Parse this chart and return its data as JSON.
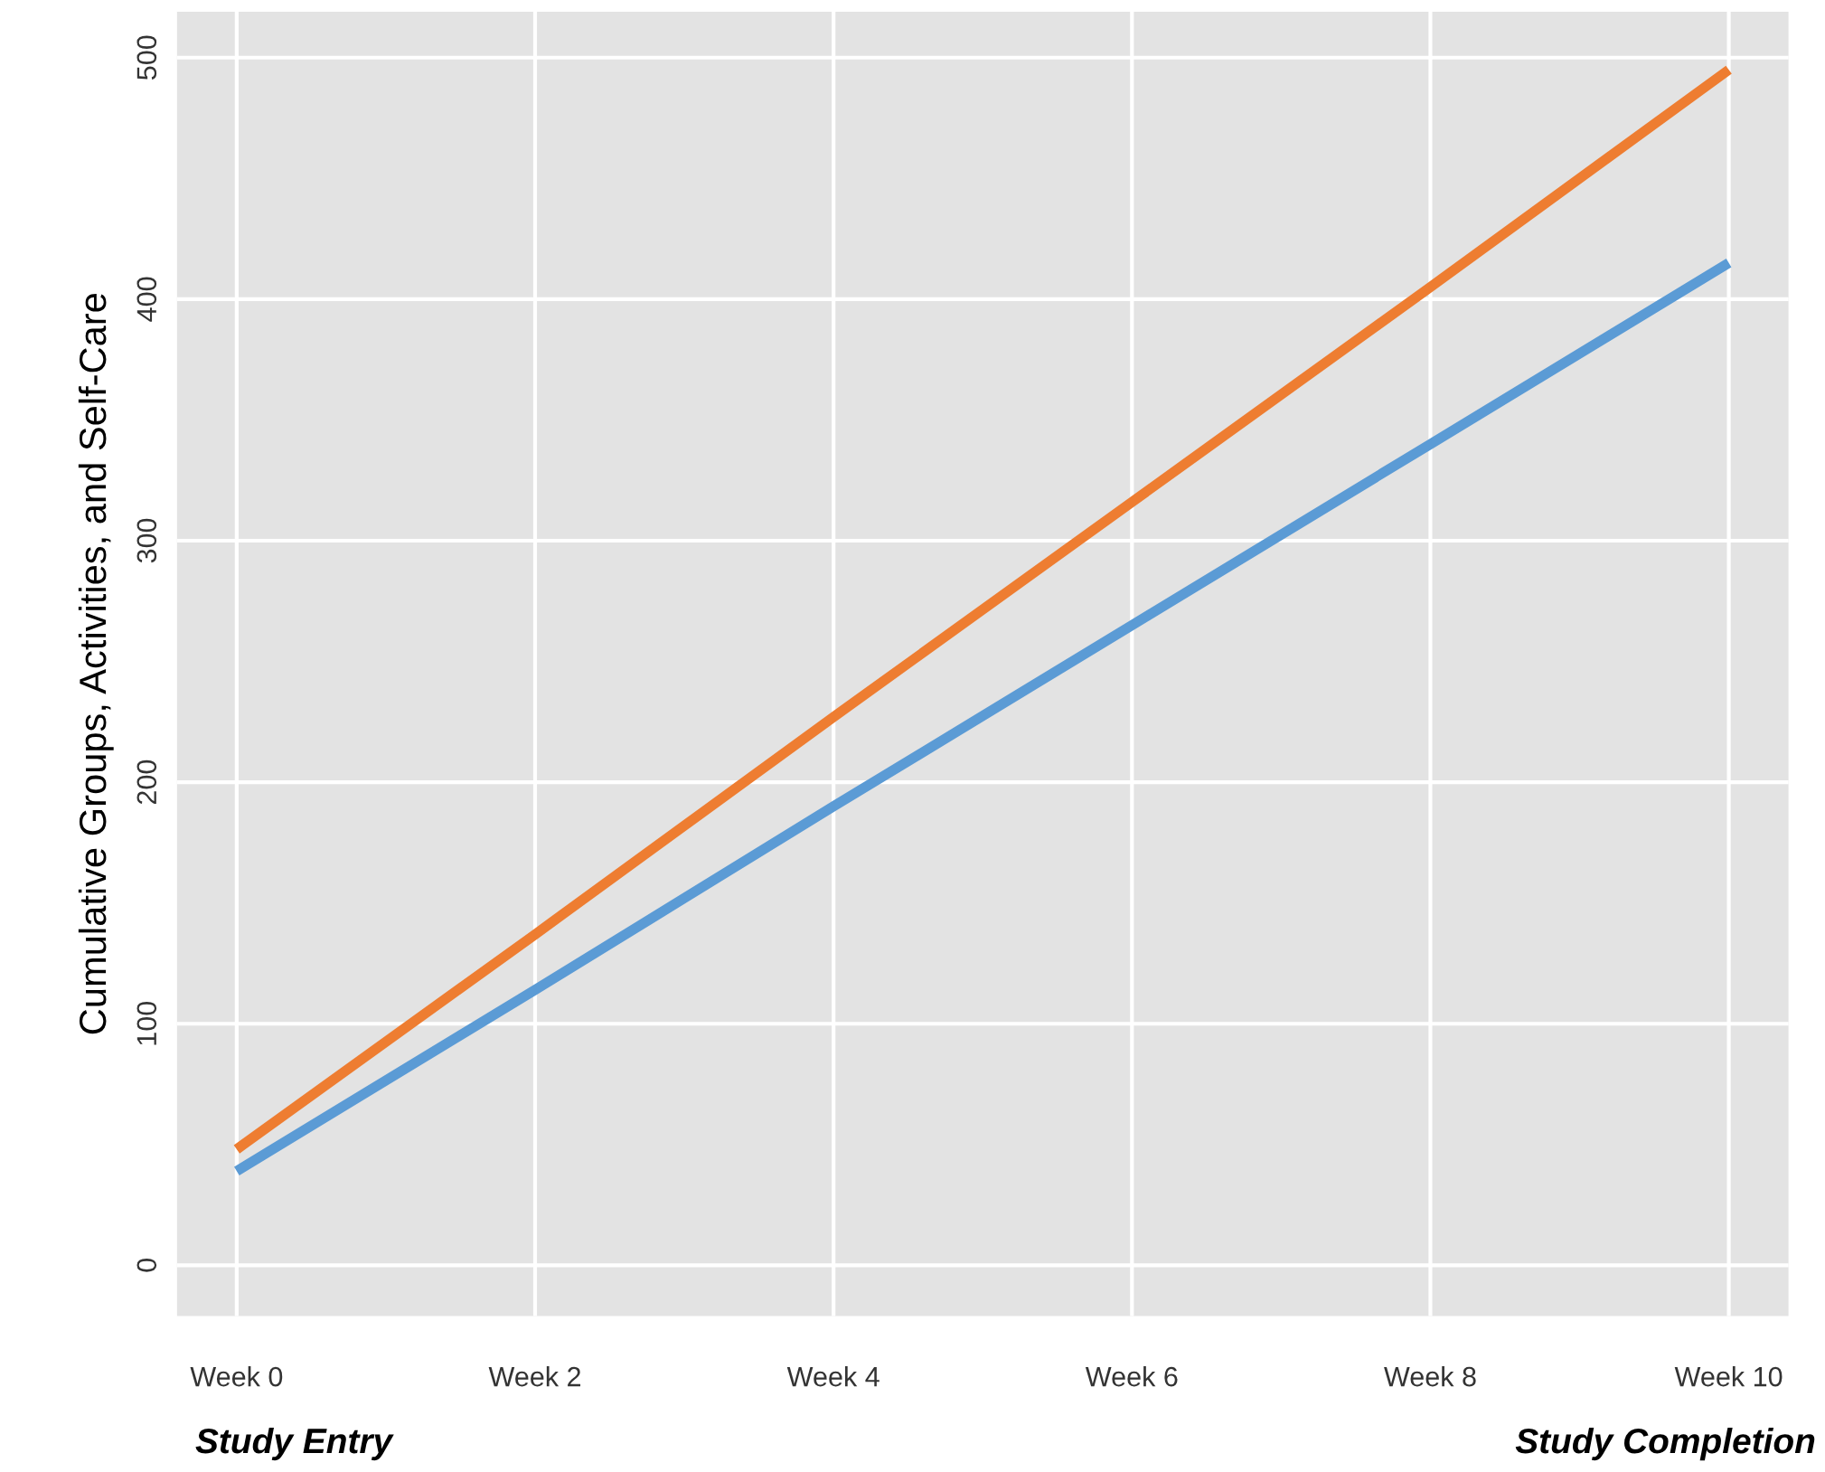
{
  "chart_data": {
    "type": "line",
    "ylabel": "Cumulative Groups, Activities, and Self-Care",
    "categories": [
      "Week 0",
      "Week 2",
      "Week 4",
      "Week 6",
      "Week 8",
      "Week 10"
    ],
    "series": [
      {
        "color": "#ee7d31",
        "values": [
          48,
          137,
          227,
          316,
          405,
          495
        ]
      },
      {
        "color": "#5b9bd5",
        "values": [
          39,
          114,
          190,
          265,
          340,
          415
        ]
      }
    ],
    "ylim": [
      -21,
      519
    ],
    "yticks": [
      0,
      100,
      200,
      300,
      400,
      500
    ],
    "grid": true,
    "marker": "none",
    "line_style": "solid",
    "annotations": [
      "Study Entry",
      "Study Completion"
    ]
  }
}
